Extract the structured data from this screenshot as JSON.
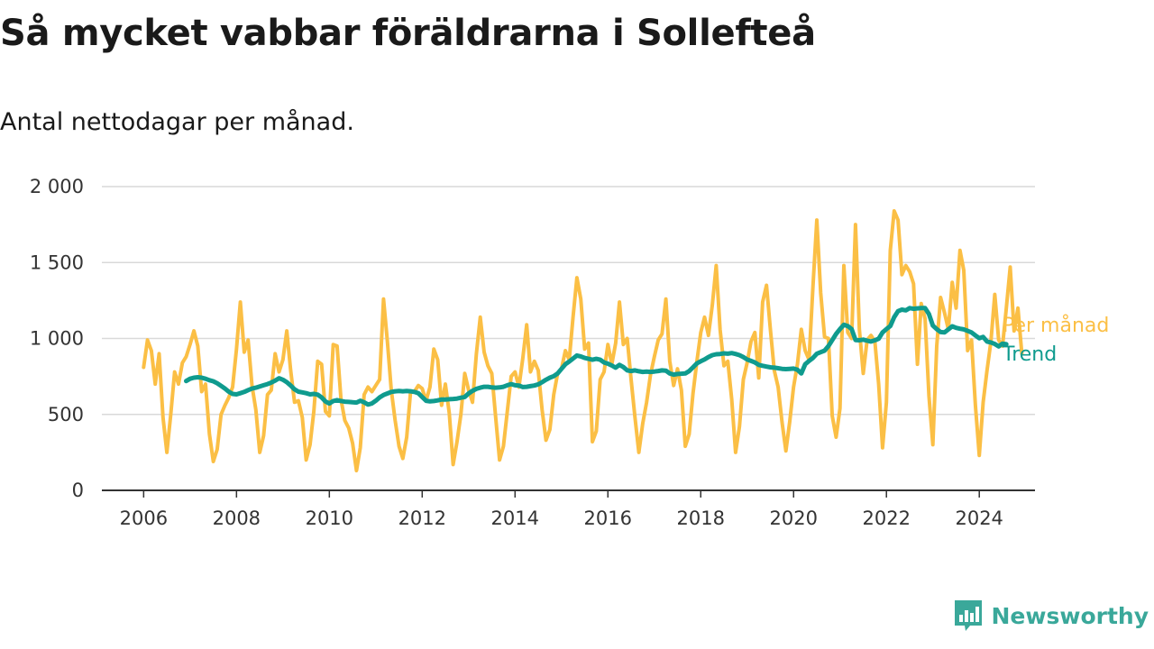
{
  "title": "Så mycket vabbar föräldrarna i Sollefteå",
  "subtitle": "Antal nettodagar per månad.",
  "brand": {
    "name": "Newsworthy",
    "icon": "newsworthy-logo-icon",
    "color": "#3aa89a"
  },
  "chart_data": {
    "type": "line",
    "xlim": [
      2006,
      2024.4
    ],
    "ylim": [
      0,
      2000
    ],
    "x_ticks": [
      2006,
      2008,
      2010,
      2012,
      2014,
      2016,
      2018,
      2020,
      2022,
      2024
    ],
    "x_tick_labels": [
      "2006",
      "2008",
      "2010",
      "2012",
      "2014",
      "2016",
      "2018",
      "2020",
      "2022",
      "2024"
    ],
    "y_ticks": [
      0,
      500,
      1000,
      1500,
      2000
    ],
    "y_tick_labels": [
      "0",
      "500",
      "1 000",
      "1 500",
      "2 000"
    ],
    "grid": true,
    "legend_placement": "right end of lines",
    "series": [
      {
        "name": "Per månad",
        "color": "#fbbf45",
        "x_start": 2006.0,
        "x_step_months": 1,
        "values": [
          810,
          990,
          920,
          700,
          900,
          480,
          250,
          500,
          780,
          700,
          840,
          880,
          960,
          1050,
          950,
          650,
          700,
          370,
          190,
          270,
          500,
          560,
          610,
          680,
          930,
          1240,
          910,
          990,
          690,
          530,
          250,
          360,
          630,
          660,
          900,
          780,
          860,
          1050,
          790,
          580,
          590,
          480,
          200,
          300,
          520,
          850,
          830,
          520,
          490,
          960,
          950,
          600,
          460,
          410,
          310,
          130,
          280,
          630,
          680,
          650,
          690,
          730,
          1260,
          980,
          660,
          460,
          290,
          210,
          350,
          650,
          650,
          690,
          670,
          590,
          680,
          930,
          860,
          560,
          700,
          510,
          170,
          320,
          500,
          770,
          660,
          580,
          900,
          1140,
          910,
          820,
          770,
          480,
          200,
          290,
          520,
          750,
          780,
          680,
          870,
          1090,
          780,
          850,
          790,
          530,
          330,
          400,
          630,
          770,
          800,
          920,
          860,
          1140,
          1400,
          1260,
          930,
          970,
          320,
          390,
          730,
          780,
          960,
          830,
          970,
          1240,
          960,
          1000,
          730,
          480,
          250,
          440,
          580,
          760,
          880,
          990,
          1030,
          1260,
          850,
          690,
          800,
          660,
          290,
          370,
          640,
          850,
          1040,
          1140,
          1020,
          1220,
          1480,
          1060,
          820,
          850,
          600,
          250,
          420,
          730,
          840,
          980,
          1040,
          740,
          1240,
          1350,
          1060,
          790,
          680,
          450,
          260,
          450,
          680,
          830,
          1060,
          920,
          860,
          1340,
          1780,
          1300,
          1010,
          1000,
          490,
          350,
          540,
          1480,
          1040,
          1000,
          1750,
          1060,
          770,
          990,
          1020,
          980,
          700,
          280,
          580,
          1580,
          1840,
          1780,
          1420,
          1480,
          1440,
          1360,
          830,
          1230,
          1130,
          620,
          300,
          950,
          1270,
          1170,
          1060,
          1370,
          1200,
          1580,
          1450,
          920,
          990,
          560,
          230,
          580,
          790,
          980,
          1290,
          990,
          950,
          1200,
          1470,
          1050,
          1200,
          900
        ]
      },
      {
        "name": "Trend",
        "color": "#0f9b8e",
        "x_start": 2006.9167,
        "x_step_months": 1,
        "values": [
          720,
          735,
          742,
          745,
          742,
          735,
          725,
          718,
          705,
          688,
          670,
          650,
          635,
          632,
          640,
          648,
          660,
          670,
          676,
          684,
          692,
          700,
          710,
          722,
          738,
          728,
          712,
          690,
          665,
          650,
          645,
          640,
          632,
          635,
          630,
          612,
          585,
          572,
          588,
          594,
          588,
          584,
          582,
          580,
          578,
          590,
          580,
          565,
          572,
          590,
          612,
          628,
          638,
          648,
          652,
          654,
          652,
          654,
          652,
          648,
          640,
          615,
          590,
          586,
          588,
          592,
          598,
          598,
          600,
          602,
          604,
          610,
          615,
          638,
          655,
          668,
          676,
          682,
          682,
          678,
          676,
          678,
          682,
          692,
          700,
          692,
          690,
          680,
          682,
          686,
          690,
          698,
          712,
          728,
          742,
          752,
          770,
          800,
          830,
          848,
          868,
          888,
          882,
          872,
          866,
          860,
          866,
          860,
          842,
          834,
          822,
          808,
          826,
          812,
          790,
          786,
          790,
          784,
          780,
          782,
          780,
          782,
          786,
          790,
          788,
          770,
          762,
          766,
          768,
          770,
          785,
          810,
          836,
          850,
          862,
          878,
          890,
          896,
          898,
          902,
          900,
          904,
          898,
          890,
          878,
          862,
          852,
          842,
          826,
          820,
          815,
          810,
          808,
          804,
          800,
          798,
          800,
          802,
          794,
          770,
          830,
          852,
          872,
          900,
          910,
          920,
          950,
          990,
          1030,
          1062,
          1090,
          1082,
          1062,
          990,
          988,
          992,
          986,
          980,
          988,
          998,
          1040,
          1062,
          1082,
          1140,
          1180,
          1190,
          1185,
          1200,
          1195,
          1198,
          1200,
          1200,
          1160,
          1085,
          1062,
          1042,
          1040,
          1060,
          1080,
          1070,
          1064,
          1060,
          1050,
          1040,
          1020,
          1002,
          1010,
          980,
          974,
          964,
          948,
          966,
          962
        ]
      }
    ]
  }
}
